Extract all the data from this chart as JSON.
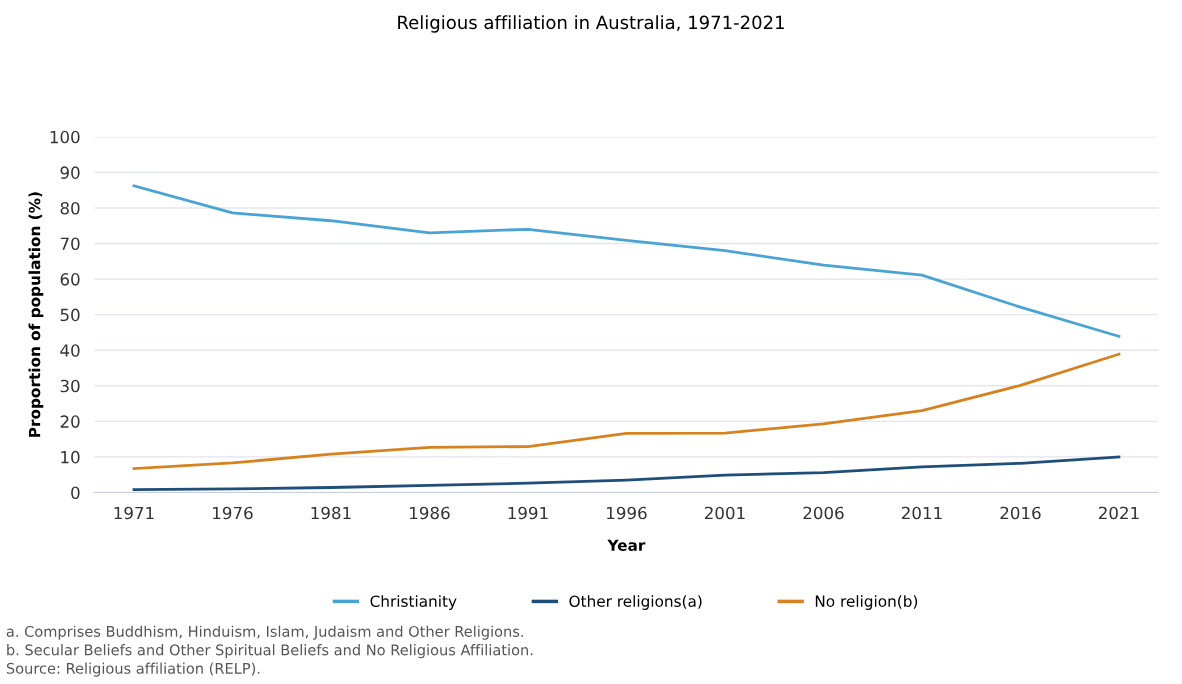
{
  "chart_data": {
    "type": "line",
    "title": "Religious affiliation in Australia, 1971-2021",
    "xlabel": "Year",
    "ylabel": "Proportion of population (%)",
    "categories": [
      "1971",
      "1976",
      "1981",
      "1986",
      "1991",
      "1996",
      "2001",
      "2006",
      "2011",
      "2016",
      "2021"
    ],
    "series": [
      {
        "name": "Christianity",
        "color": "#4aa3d5",
        "values": [
          86.2,
          78.6,
          76.4,
          73.0,
          74.0,
          70.9,
          68.0,
          63.9,
          61.1,
          52.1,
          43.9
        ]
      },
      {
        "name": "Other religions(a)",
        "color": "#1e4e79",
        "values": [
          0.8,
          1.0,
          1.4,
          2.0,
          2.6,
          3.5,
          4.9,
          5.6,
          7.2,
          8.2,
          10.0
        ]
      },
      {
        "name": "No religion(b)",
        "color": "#d6821f",
        "values": [
          6.7,
          8.3,
          10.8,
          12.7,
          12.9,
          16.6,
          16.7,
          19.3,
          23.0,
          30.1,
          38.9
        ]
      }
    ],
    "ylim": [
      0,
      100
    ],
    "yticks": [
      0,
      10,
      20,
      30,
      40,
      50,
      60,
      70,
      80,
      90,
      100
    ],
    "grid": "y",
    "legend": "bottom",
    "marker": "none",
    "line_style": "solid",
    "annotations": [
      "a. Comprises Buddhism, Hinduism, Islam, Judaism and Other Religions.",
      "b. Secular Beliefs and Other Spiritual Beliefs and No Religious Affiliation.",
      "Source: Religious affiliation (RELP)."
    ]
  }
}
